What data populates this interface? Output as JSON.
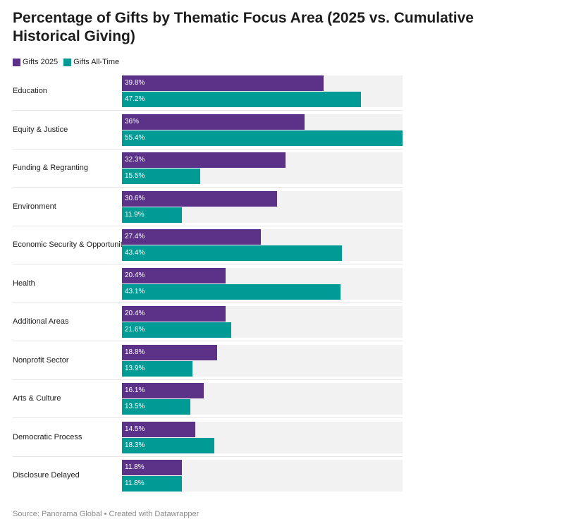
{
  "chart_data": {
    "type": "bar",
    "orientation": "horizontal",
    "title": "Percentage of Gifts by Thematic Focus Area (2025 vs. Cumulative Historical Giving)",
    "categories": [
      "Education",
      "Equity & Justice",
      "Funding & Regranting",
      "Environment",
      "Economic Security & Opportunity",
      "Health",
      "Additional Areas",
      "Nonprofit Sector",
      "Arts & Culture",
      "Democratic Process",
      "Disclosure Delayed"
    ],
    "series": [
      {
        "name": "Gifts 2025",
        "color": "#5c3289",
        "values": [
          39.8,
          36,
          32.3,
          30.6,
          27.4,
          20.4,
          20.4,
          18.8,
          16.1,
          14.5,
          11.8
        ],
        "labels": [
          "39.8%",
          "36%",
          "32.3%",
          "30.6%",
          "27.4%",
          "20.4%",
          "20.4%",
          "18.8%",
          "16.1%",
          "14.5%",
          "11.8%"
        ]
      },
      {
        "name": "Gifts All-Time",
        "color": "#009b94",
        "values": [
          47.2,
          55.4,
          15.5,
          11.9,
          43.4,
          43.1,
          21.6,
          13.9,
          13.5,
          18.3,
          11.8
        ],
        "labels": [
          "47.2%",
          "55.4%",
          "15.5%",
          "11.9%",
          "43.4%",
          "43.1%",
          "21.6%",
          "13.9%",
          "13.5%",
          "18.3%",
          "11.8%"
        ]
      }
    ],
    "xlim": [
      0,
      55.4
    ],
    "legend": "top-left",
    "grid": false
  },
  "source": "Source: Panorama Global • Created with Datawrapper"
}
